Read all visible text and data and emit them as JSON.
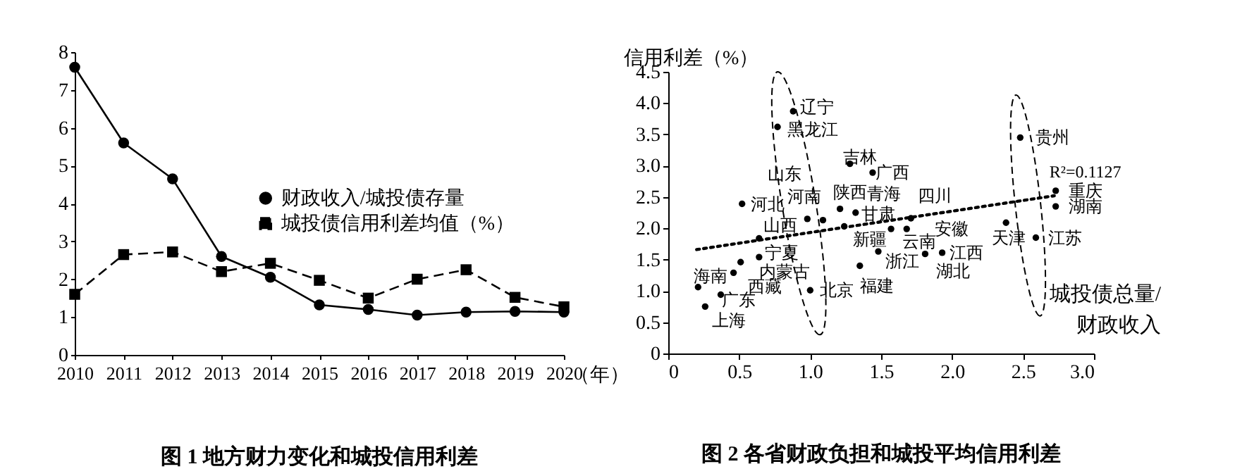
{
  "chart_data": [
    {
      "type": "line",
      "title": "图 1 地方财力变化和城投信用利差",
      "xlabel": "（年）",
      "categories": [
        "2010",
        "2011",
        "2012",
        "2013",
        "2014",
        "2015",
        "2016",
        "2017",
        "2018",
        "2019",
        "2020"
      ],
      "ylim": [
        0,
        8
      ],
      "yticks": [
        0,
        1,
        2,
        3,
        4,
        5,
        6,
        7,
        8
      ],
      "grid": false,
      "legend": "right",
      "series": [
        {
          "name": "财政收入/城投债存量",
          "color": "#000000",
          "marker": "circle",
          "line_style": "solid",
          "values": [
            7.6,
            5.6,
            4.65,
            2.6,
            2.05,
            1.32,
            1.2,
            1.05,
            1.13,
            1.15,
            1.13
          ]
        },
        {
          "name": "城投债信用利差均值（%）",
          "color": "#000000",
          "marker": "square",
          "line_style": "dashed",
          "values": [
            1.6,
            2.65,
            2.72,
            2.2,
            2.42,
            1.97,
            1.5,
            2.0,
            2.25,
            1.52,
            1.27
          ]
        }
      ]
    },
    {
      "type": "scatter",
      "title": "图 2 各省财政负担和城投平均信用利差",
      "xlabel": "城投债总量/财政收入",
      "ylabel": "信用利差（%）",
      "xlim": [
        0,
        3
      ],
      "xticks": [
        0,
        0.5,
        {
          "value": 1,
          "label": "1.0"
        },
        1.5,
        {
          "value": 2,
          "label": "2.0"
        },
        2.5,
        {
          "value": 3,
          "label": "3.0"
        }
      ],
      "ylim": [
        0,
        4.5
      ],
      "yticks": [
        0,
        0.5,
        {
          "value": 1,
          "label": "1.0"
        },
        1.5,
        {
          "value": 2,
          "label": "2.0"
        },
        2.5,
        {
          "value": 3,
          "label": "3.0"
        },
        3.5,
        {
          "value": 4,
          "label": "4.0"
        },
        4.5
      ],
      "grid": false,
      "legend": false,
      "series": [
        {
          "type": "scatter",
          "color": "#000000",
          "marker": "circle",
          "x": [
            0.88,
            0.77,
            1.28,
            1.44,
            0.52,
            1.09,
            0.98,
            1.21,
            1.32,
            1.57,
            1.71,
            1.24,
            1.68,
            0.64,
            0.64,
            0.51,
            0.46,
            0.21,
            0.37,
            0.26,
            1.0,
            1.35,
            1.48,
            1.81,
            1.93,
            2.48,
            2.73,
            2.73,
            2.38,
            2.59
          ],
          "values": [
            3.87,
            3.62,
            3.03,
            2.89,
            2.39,
            2.13,
            2.15,
            2.31,
            2.25,
            1.99,
            2.16,
            2.03,
            1.99,
            1.84,
            1.54,
            1.46,
            1.29,
            1.06,
            0.94,
            0.75,
            1.01,
            1.4,
            1.63,
            1.59,
            1.61,
            3.45,
            2.6,
            2.35,
            2.09,
            1.85
          ]
        },
        {
          "type": "line",
          "color": "#000000",
          "line_style": "dotted",
          "x": [
            0.2,
            2.72
          ],
          "values": [
            1.66,
            2.52
          ]
        }
      ],
      "annotations": [
        {
          "text": "R²=0.1127",
          "x": 2.72,
          "y": 2.52
        },
        {
          "text": "辽宁",
          "x": 0.88,
          "y": 3.87
        },
        {
          "text": "黑龙江",
          "x": 0.77,
          "y": 3.62
        },
        {
          "text": "吉林",
          "x": 1.28,
          "y": 3.03
        },
        {
          "text": "广西",
          "x": 1.44,
          "y": 2.89
        },
        {
          "text": "河北",
          "x": 0.52,
          "y": 2.39
        },
        {
          "text": "山东",
          "x": 1.09,
          "y": 2.13
        },
        {
          "text": "河南",
          "x": 0.98,
          "y": 2.15
        },
        {
          "text": "陕西",
          "x": 1.21,
          "y": 2.31
        },
        {
          "text": "甘肃",
          "x": 1.32,
          "y": 2.25
        },
        {
          "text": "青海",
          "x": 1.57,
          "y": 1.99
        },
        {
          "text": "四川",
          "x": 1.71,
          "y": 2.16
        },
        {
          "text": "新疆",
          "x": 1.24,
          "y": 2.03
        },
        {
          "text": "云南",
          "x": 1.68,
          "y": 1.99
        },
        {
          "text": "安徽",
          "x": 1.68,
          "y": 1.99
        },
        {
          "text": "山西",
          "x": 0.64,
          "y": 1.84
        },
        {
          "text": "宁夏",
          "x": 0.64,
          "y": 1.54
        },
        {
          "text": "内蒙古",
          "x": 0.51,
          "y": 1.46
        },
        {
          "text": "西藏",
          "x": 0.46,
          "y": 1.29
        },
        {
          "text": "海南",
          "x": 0.21,
          "y": 1.06
        },
        {
          "text": "广东",
          "x": 0.37,
          "y": 0.94
        },
        {
          "text": "上海",
          "x": 0.26,
          "y": 0.75
        },
        {
          "text": "北京",
          "x": 1.0,
          "y": 1.01
        },
        {
          "text": "福建",
          "x": 1.35,
          "y": 1.4
        },
        {
          "text": "浙江",
          "x": 1.48,
          "y": 1.63
        },
        {
          "text": "湖北",
          "x": 1.81,
          "y": 1.59
        },
        {
          "text": "江西",
          "x": 1.93,
          "y": 1.61
        },
        {
          "text": "贵州",
          "x": 2.48,
          "y": 3.45
        },
        {
          "text": "重庆",
          "x": 2.73,
          "y": 2.6
        },
        {
          "text": "湖南",
          "x": 2.73,
          "y": 2.35
        },
        {
          "text": "天津",
          "x": 2.38,
          "y": 2.09
        },
        {
          "text": "江苏",
          "x": 2.59,
          "y": 1.85
        }
      ]
    }
  ]
}
